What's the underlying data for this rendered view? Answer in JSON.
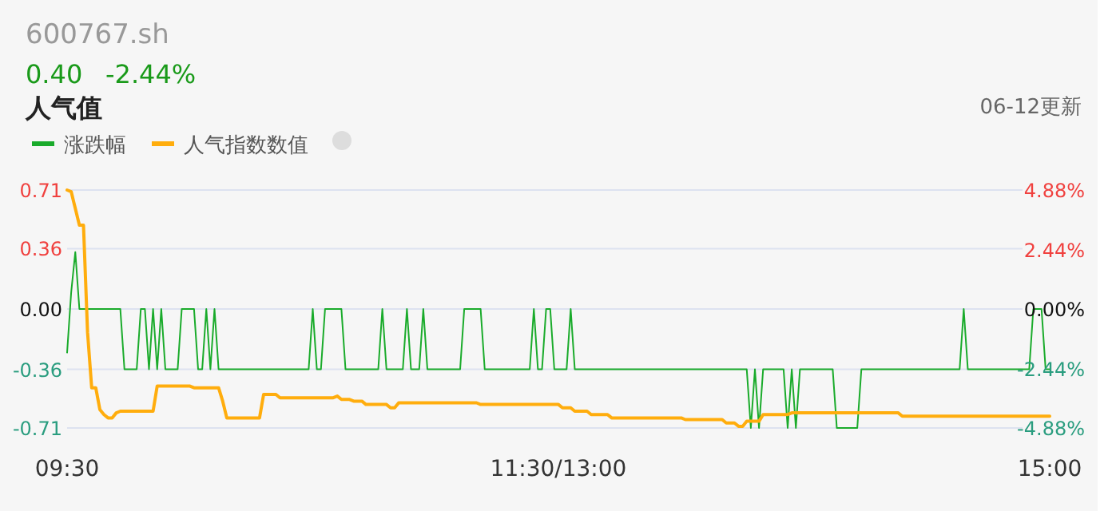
{
  "chart_data": {
    "type": "line",
    "title": "600767.sh",
    "annotations": [
      "0.40",
      "-2.44%",
      "人气值",
      "06-12更新"
    ],
    "categories": [
      "09:30",
      null,
      null,
      null,
      null,
      null,
      null,
      null,
      null,
      null,
      null,
      null,
      null,
      null,
      null,
      null,
      null,
      null,
      null,
      null,
      null,
      null,
      null,
      null,
      null,
      null,
      null,
      null,
      null,
      null,
      null,
      null,
      null,
      null,
      null,
      null,
      null,
      null,
      null,
      null,
      null,
      null,
      null,
      null,
      null,
      null,
      null,
      null,
      null,
      null,
      null,
      null,
      null,
      null,
      null,
      null,
      null,
      null,
      null,
      null,
      null,
      null,
      null,
      null,
      null,
      null,
      null,
      null,
      null,
      null,
      null,
      null,
      null,
      null,
      null,
      null,
      null,
      null,
      null,
      null,
      null,
      null,
      null,
      null,
      null,
      null,
      null,
      null,
      null,
      null,
      null,
      null,
      null,
      null,
      null,
      null,
      null,
      null,
      null,
      null,
      null,
      null,
      null,
      null,
      null,
      null,
      null,
      null,
      null,
      null,
      null,
      null,
      null,
      null,
      null,
      null,
      null,
      null,
      null,
      null,
      "11:30/13:00",
      null,
      null,
      null,
      null,
      null,
      null,
      null,
      null,
      null,
      null,
      null,
      null,
      null,
      null,
      null,
      null,
      null,
      null,
      null,
      null,
      null,
      null,
      null,
      null,
      null,
      null,
      null,
      null,
      null,
      null,
      null,
      null,
      null,
      null,
      null,
      null,
      null,
      null,
      null,
      null,
      null,
      null,
      null,
      null,
      null,
      null,
      null,
      null,
      null,
      null,
      null,
      null,
      null,
      null,
      null,
      null,
      null,
      null,
      null,
      null,
      null,
      null,
      null,
      null,
      null,
      null,
      null,
      null,
      null,
      null,
      null,
      null,
      null,
      null,
      null,
      null,
      null,
      null,
      null,
      null,
      null,
      null,
      null,
      null,
      null,
      null,
      null,
      null,
      null,
      null,
      null,
      null,
      null,
      null,
      null,
      null,
      null,
      null,
      null,
      null,
      null,
      null,
      null,
      null,
      null,
      null,
      null,
      null,
      null,
      null,
      null,
      null,
      null,
      null,
      null,
      null,
      null,
      null,
      null,
      "15:00"
    ],
    "ylim": [
      -0.71,
      0.71
    ],
    "yticks": [
      {
        "value": -0.71,
        "label": "-0.71"
      },
      {
        "value": -0.36,
        "label": "-0.36"
      },
      {
        "value": 0,
        "label": "0.00"
      },
      {
        "value": 0.36,
        "label": "0.36"
      },
      {
        "value": 0.71,
        "label": "0.71"
      }
    ],
    "y2lim": [
      -4.88,
      4.88
    ],
    "y2ticks": [
      {
        "value": -4.88,
        "label": "-4.88%"
      },
      {
        "value": -2.44,
        "label": "-2.44%"
      },
      {
        "value": 0,
        "label": "0.00%"
      },
      {
        "value": 2.44,
        "label": "2.44%"
      },
      {
        "value": 4.88,
        "label": "4.88%"
      }
    ],
    "grid": "y",
    "legend": "top left",
    "marker": "none",
    "line_style": "solid",
    "series": [
      {
        "name": "涨跌幅",
        "color": "#1aab2b",
        "values": [
          -0.26,
          0.1,
          0.34,
          0,
          0,
          0,
          0,
          0,
          0,
          0,
          0,
          0,
          0,
          0,
          -0.36,
          -0.36,
          -0.36,
          -0.36,
          0,
          0,
          -0.36,
          0,
          -0.36,
          0,
          -0.36,
          -0.36,
          -0.36,
          -0.36,
          0,
          0,
          0,
          0,
          -0.36,
          -0.36,
          0,
          -0.36,
          0,
          -0.36,
          -0.36,
          -0.36,
          -0.36,
          -0.36,
          -0.36,
          -0.36,
          -0.36,
          -0.36,
          -0.36,
          -0.36,
          -0.36,
          -0.36,
          -0.36,
          -0.36,
          -0.36,
          -0.36,
          -0.36,
          -0.36,
          -0.36,
          -0.36,
          -0.36,
          -0.36,
          0,
          -0.36,
          -0.36,
          0,
          0,
          0,
          0,
          0,
          -0.36,
          -0.36,
          -0.36,
          -0.36,
          -0.36,
          -0.36,
          -0.36,
          -0.36,
          -0.36,
          0,
          -0.36,
          -0.36,
          -0.36,
          -0.36,
          -0.36,
          0,
          -0.36,
          -0.36,
          -0.36,
          0,
          -0.36,
          -0.36,
          -0.36,
          -0.36,
          -0.36,
          -0.36,
          -0.36,
          -0.36,
          -0.36,
          0,
          0,
          0,
          0,
          0,
          -0.36,
          -0.36,
          -0.36,
          -0.36,
          -0.36,
          -0.36,
          -0.36,
          -0.36,
          -0.36,
          -0.36,
          -0.36,
          -0.36,
          0,
          -0.36,
          -0.36,
          0,
          0,
          -0.36,
          -0.36,
          -0.36,
          -0.36,
          0,
          -0.36,
          -0.36,
          -0.36,
          -0.36,
          -0.36,
          -0.36,
          -0.36,
          -0.36,
          -0.36,
          -0.36,
          -0.36,
          -0.36,
          -0.36,
          -0.36,
          -0.36,
          -0.36,
          -0.36,
          -0.36,
          -0.36,
          -0.36,
          -0.36,
          -0.36,
          -0.36,
          -0.36,
          -0.36,
          -0.36,
          -0.36,
          -0.36,
          -0.36,
          -0.36,
          -0.36,
          -0.36,
          -0.36,
          -0.36,
          -0.36,
          -0.36,
          -0.36,
          -0.36,
          -0.36,
          -0.36,
          -0.36,
          -0.36,
          -0.36,
          -0.71,
          -0.36,
          -0.71,
          -0.36,
          -0.36,
          -0.36,
          -0.36,
          -0.36,
          -0.36,
          -0.71,
          -0.36,
          -0.71,
          -0.36,
          -0.36,
          -0.36,
          -0.36,
          -0.36,
          -0.36,
          -0.36,
          -0.36,
          -0.36,
          -0.71,
          -0.71,
          -0.71,
          -0.71,
          -0.71,
          -0.71,
          -0.36,
          -0.36,
          -0.36,
          -0.36,
          -0.36,
          -0.36,
          -0.36,
          -0.36,
          -0.36,
          -0.36,
          -0.36,
          -0.36,
          -0.36,
          -0.36,
          -0.36,
          -0.36,
          -0.36,
          -0.36,
          -0.36,
          -0.36,
          -0.36,
          -0.36,
          -0.36,
          -0.36,
          -0.36,
          0,
          -0.36,
          -0.36,
          -0.36,
          -0.36,
          -0.36,
          -0.36,
          -0.36,
          -0.36,
          -0.36,
          -0.36,
          -0.36,
          -0.36,
          -0.36,
          -0.36,
          -0.36,
          -0.36,
          0,
          0,
          0,
          -0.36,
          -0.36
        ]
      },
      {
        "name": "人气指数数值",
        "color": "#ffad0d",
        "values": [
          0.71,
          0.7,
          0.6,
          0.5,
          0.5,
          -0.14,
          -0.47,
          -0.47,
          -0.6,
          -0.63,
          -0.65,
          -0.65,
          -0.62,
          -0.61,
          -0.61,
          -0.61,
          -0.61,
          -0.61,
          -0.61,
          -0.61,
          -0.61,
          -0.61,
          -0.46,
          -0.46,
          -0.46,
          -0.46,
          -0.46,
          -0.46,
          -0.46,
          -0.46,
          -0.46,
          -0.47,
          -0.47,
          -0.47,
          -0.47,
          -0.47,
          -0.47,
          -0.47,
          -0.55,
          -0.65,
          -0.65,
          -0.65,
          -0.65,
          -0.65,
          -0.65,
          -0.65,
          -0.65,
          -0.65,
          -0.51,
          -0.51,
          -0.51,
          -0.51,
          -0.53,
          -0.53,
          -0.53,
          -0.53,
          -0.53,
          -0.53,
          -0.53,
          -0.53,
          -0.53,
          -0.53,
          -0.53,
          -0.53,
          -0.53,
          -0.53,
          -0.52,
          -0.54,
          -0.54,
          -0.54,
          -0.55,
          -0.55,
          -0.55,
          -0.57,
          -0.57,
          -0.57,
          -0.57,
          -0.57,
          -0.57,
          -0.59,
          -0.59,
          -0.56,
          -0.56,
          -0.56,
          -0.56,
          -0.56,
          -0.56,
          -0.56,
          -0.56,
          -0.56,
          -0.56,
          -0.56,
          -0.56,
          -0.56,
          -0.56,
          -0.56,
          -0.56,
          -0.56,
          -0.56,
          -0.56,
          -0.56,
          -0.57,
          -0.57,
          -0.57,
          -0.57,
          -0.57,
          -0.57,
          -0.57,
          -0.57,
          -0.57,
          -0.57,
          -0.57,
          -0.57,
          -0.57,
          -0.57,
          -0.57,
          -0.57,
          -0.57,
          -0.57,
          -0.57,
          -0.57,
          -0.59,
          -0.59,
          -0.59,
          -0.61,
          -0.61,
          -0.61,
          -0.61,
          -0.63,
          -0.63,
          -0.63,
          -0.63,
          -0.63,
          -0.65,
          -0.65,
          -0.65,
          -0.65,
          -0.65,
          -0.65,
          -0.65,
          -0.65,
          -0.65,
          -0.65,
          -0.65,
          -0.65,
          -0.65,
          -0.65,
          -0.65,
          -0.65,
          -0.65,
          -0.65,
          -0.66,
          -0.66,
          -0.66,
          -0.66,
          -0.66,
          -0.66,
          -0.66,
          -0.66,
          -0.66,
          -0.66,
          -0.68,
          -0.68,
          -0.68,
          -0.7,
          -0.7,
          -0.67,
          -0.67,
          -0.67,
          -0.67,
          -0.63,
          -0.63,
          -0.63,
          -0.63,
          -0.63,
          -0.63,
          -0.63,
          -0.62,
          -0.62,
          -0.62,
          -0.62,
          -0.62,
          -0.62,
          -0.62,
          -0.62,
          -0.62,
          -0.62,
          -0.62,
          -0.62,
          -0.62,
          -0.62,
          -0.62,
          -0.62,
          -0.62,
          -0.62,
          -0.62,
          -0.62,
          -0.62,
          -0.62,
          -0.62,
          -0.62,
          -0.62,
          -0.62,
          -0.62,
          -0.64,
          -0.64,
          -0.64,
          -0.64,
          -0.64,
          -0.64,
          -0.64,
          -0.64,
          -0.64,
          -0.64,
          -0.64,
          -0.64,
          -0.64,
          -0.64,
          -0.64,
          -0.64,
          -0.64,
          -0.64,
          -0.64,
          -0.64,
          -0.64,
          -0.64,
          -0.64,
          -0.64,
          -0.64,
          -0.64,
          -0.64,
          -0.64,
          -0.64,
          -0.64,
          -0.64,
          -0.64,
          -0.64,
          -0.64,
          -0.64,
          -0.64,
          -0.64
        ]
      }
    ]
  }
}
